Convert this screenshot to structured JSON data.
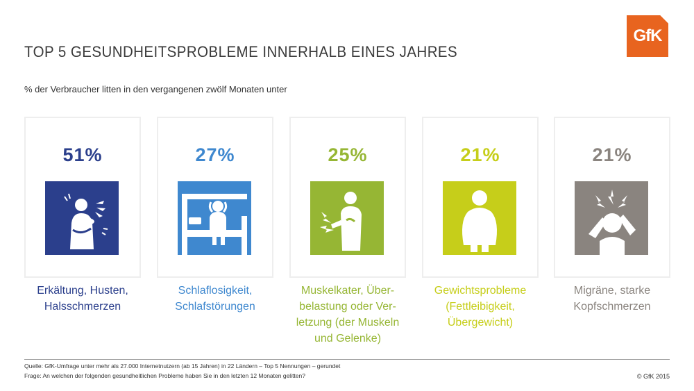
{
  "title": "TOP 5 GESUNDHEITSPROBLEME INNERHALB EINES JAHRES",
  "subtitle": "% der Verbraucher litten in den vergangenen zwölf Monaten unter",
  "logo_text": "GfK",
  "logo_color": "#e8641f",
  "source": "Quelle: GfK-Umfrage unter mehr als 27.000 Internetnutzern (ab 15 Jahren) in 22 Ländern – Top 5 Nennungen – gerundet",
  "question": "Frage: An welchen der folgenden gesundheitlichen Probleme haben Sie in den letzten 12 Monaten gelitten?",
  "copyright": "© GfK 2015",
  "chart_data": {
    "type": "table",
    "unit": "%",
    "categories": [
      "Erkältung, Husten, Halsschmerzen",
      "Schlaflosigkeit, Schlafstörungen",
      "Muskelkater, Überbelastung oder Verletzung (der Muskeln und Gelenke)",
      "Gewichtsprobleme (Fettleibigkeit, Übergewicht)",
      "Migräne, starke Kopfschmerzen"
    ],
    "values": [
      51,
      27,
      25,
      21,
      21
    ],
    "items": [
      {
        "value_label": "51%",
        "label_lines": [
          "Erkältung, Husten,",
          "Halsschmerzen"
        ],
        "color": "#2b3f8c",
        "icon": "coughing-person-icon"
      },
      {
        "value_label": "27%",
        "label_lines": [
          "Schlaflosigkeit,",
          "Schlafstörungen"
        ],
        "color": "#3f88cf",
        "icon": "sleepless-person-in-bed-icon"
      },
      {
        "value_label": "25%",
        "label_lines": [
          "Muskelkater, Über-",
          "belastung oder Ver-",
          "letzung (der Muskeln",
          "und Gelenke)"
        ],
        "color": "#96b634",
        "icon": "muscle-pain-person-icon"
      },
      {
        "value_label": "21%",
        "label_lines": [
          "Gewichtsprobleme",
          "(Fettleibigkeit,",
          "Übergewicht)"
        ],
        "color": "#c6ce1a",
        "icon": "overweight-person-icon"
      },
      {
        "value_label": "21%",
        "label_lines": [
          "Migräne, starke",
          "Kopfschmerzen"
        ],
        "color": "#8a847f",
        "icon": "headache-person-icon"
      }
    ]
  }
}
